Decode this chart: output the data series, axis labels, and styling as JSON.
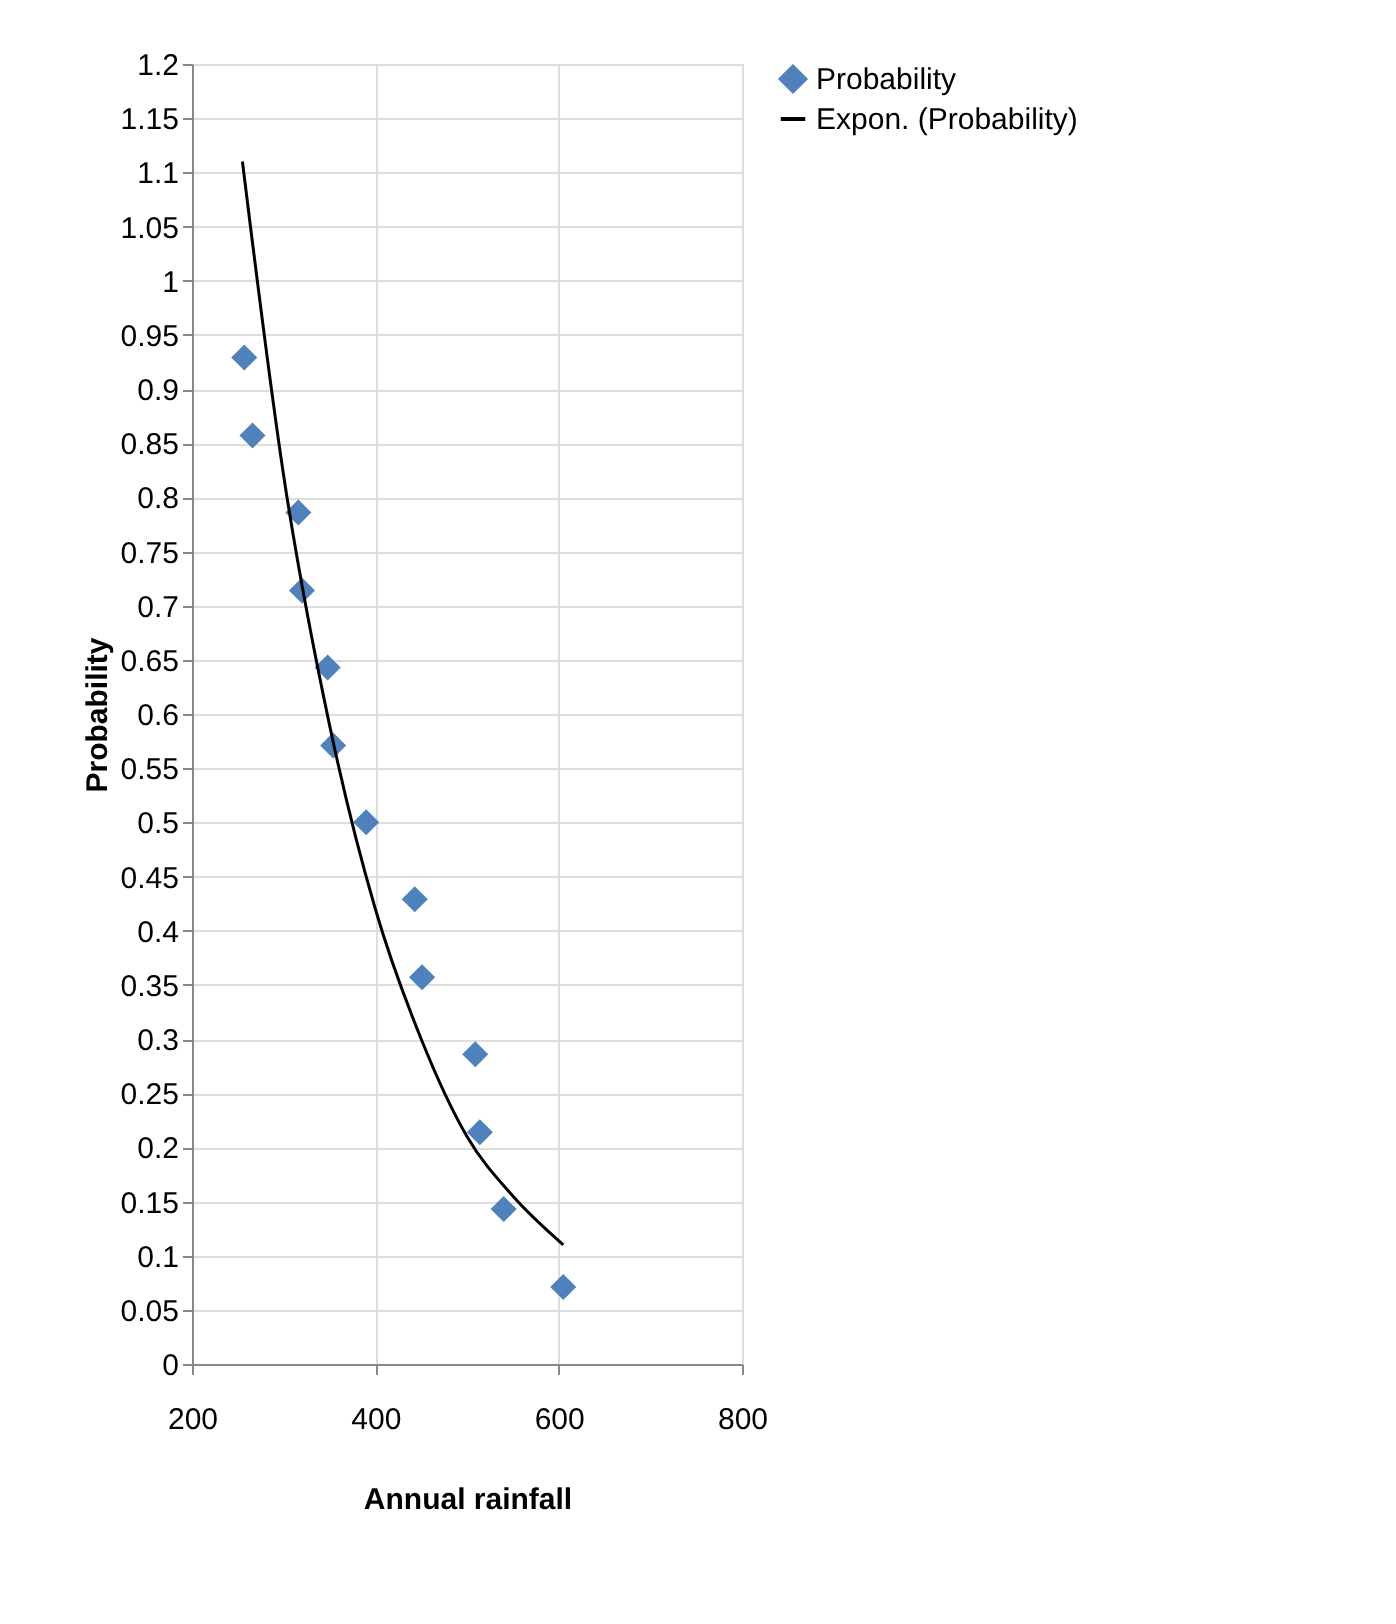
{
  "chart_data": {
    "type": "scatter",
    "xlabel": "Annual rainfall",
    "ylabel": "Probability",
    "series": [
      {
        "name": "Probability",
        "color": "#4f81bd",
        "marker": "diamond",
        "x": [
          257,
          266,
          316,
          320,
          348,
          354,
          390,
          443,
          451,
          509,
          514,
          540,
          605
        ],
        "values": [
          0.929,
          0.857,
          0.786,
          0.714,
          0.643,
          0.571,
          0.5,
          0.429,
          0.357,
          0.286,
          0.214,
          0.143,
          0.071
        ]
      },
      {
        "name": "Expon. (Probability)",
        "type": "line",
        "color": "#000000",
        "marker": "none",
        "x": [
          255,
          300,
          350,
          400,
          450,
          500,
          550,
          605
        ],
        "values": [
          1.11,
          0.82,
          0.59,
          0.42,
          0.3,
          0.21,
          0.155,
          0.11
        ]
      }
    ],
    "xlim": [
      200,
      800
    ],
    "xticks": [
      200,
      400,
      600,
      800
    ],
    "ylim": [
      0,
      1.2
    ],
    "yticks": [
      0,
      0.05,
      0.1,
      0.15,
      0.2,
      0.25,
      0.3,
      0.35,
      0.4,
      0.45,
      0.5,
      0.55,
      0.6,
      0.65,
      0.7,
      0.75,
      0.8,
      0.85,
      0.9,
      0.95,
      1,
      1.05,
      1.1,
      1.15,
      1.2
    ],
    "grid": true,
    "legend": "right"
  }
}
